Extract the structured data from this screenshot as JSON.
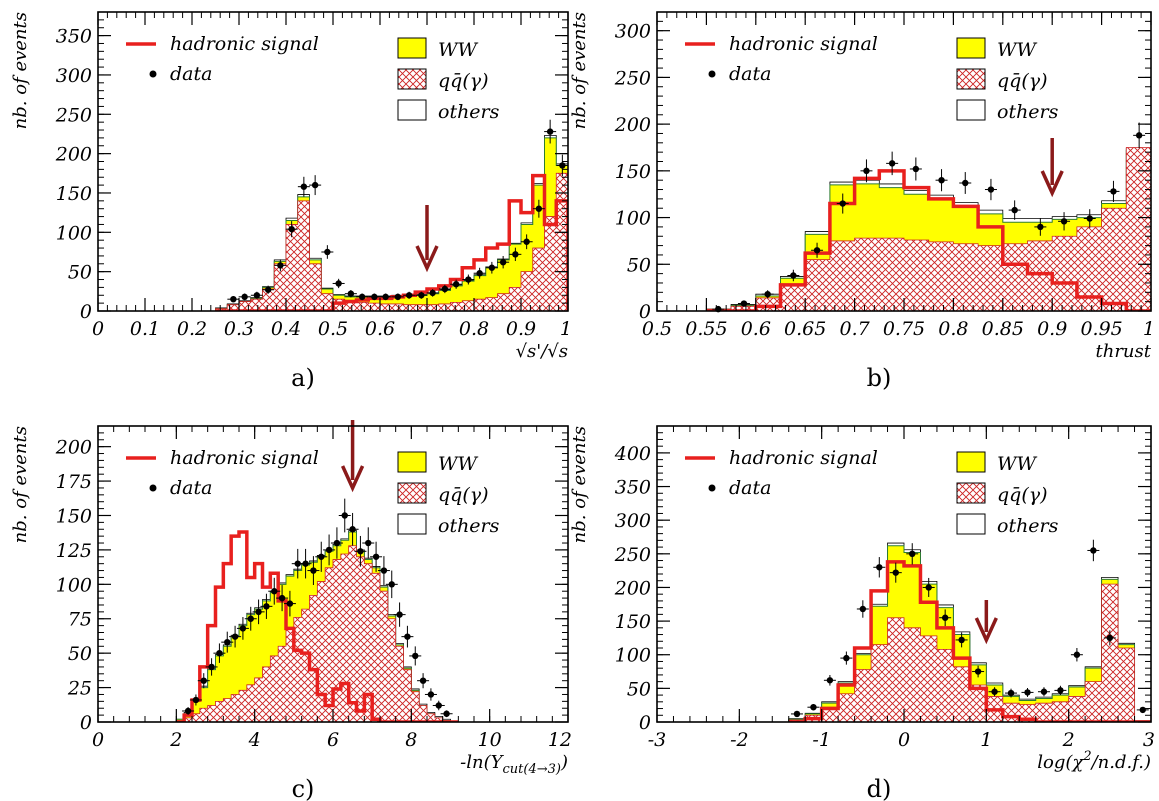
{
  "colors": {
    "ww": "#ffff00",
    "qq": "#cc2222",
    "signal": "#e8201e",
    "arrow": "#8b1a1a",
    "others_line": "#2e7d32",
    "data": "#000000"
  },
  "legend": {
    "signal": "hadronic signal",
    "data": "data",
    "ww": "WW",
    "qq": "qq̄(γ)",
    "others": "others"
  },
  "chart_data": [
    {
      "type": "histogram",
      "panel_label": "a)",
      "xlabel": "√s'/√s",
      "ylabel": "nb. of events",
      "xlim": [
        0,
        1
      ],
      "ylim": [
        0,
        380
      ],
      "xticks": [
        0,
        0.1,
        0.2,
        0.3,
        0.4,
        0.5,
        0.6,
        0.7,
        0.8,
        0.9,
        1
      ],
      "xtick_labels": [
        "0",
        "0.1",
        "0.2",
        "0.3",
        "0.4",
        "0.5",
        "0.6",
        "0.7",
        "0.8",
        "0.9",
        "1"
      ],
      "yticks": [
        0,
        50,
        100,
        150,
        200,
        250,
        300,
        350
      ],
      "ytick_labels": [
        "0",
        "50",
        "100",
        "150",
        "200",
        "250",
        "300",
        "350"
      ],
      "cut": 0.7,
      "bin_edges": [
        0.25,
        0.275,
        0.3,
        0.325,
        0.35,
        0.375,
        0.4,
        0.425,
        0.45,
        0.475,
        0.5,
        0.525,
        0.55,
        0.575,
        0.6,
        0.625,
        0.65,
        0.675,
        0.7,
        0.725,
        0.75,
        0.775,
        0.8,
        0.825,
        0.85,
        0.875,
        0.9,
        0.925,
        0.95,
        0.975,
        1.0
      ],
      "qq": [
        3,
        8,
        12,
        15,
        28,
        60,
        110,
        140,
        60,
        22,
        15,
        12,
        11,
        10,
        9,
        9,
        8,
        8,
        8,
        9,
        11,
        13,
        15,
        17,
        22,
        30,
        50,
        80,
        120,
        175
      ],
      "ww": [
        3,
        8,
        12,
        16,
        30,
        63,
        115,
        145,
        65,
        28,
        20,
        18,
        18,
        18,
        18,
        19,
        19,
        20,
        22,
        26,
        32,
        38,
        45,
        55,
        65,
        85,
        110,
        160,
        220,
        185
      ],
      "others": [
        4,
        9,
        13,
        17,
        31,
        65,
        118,
        148,
        67,
        29,
        21,
        19,
        19,
        19,
        19,
        20,
        20,
        21,
        23,
        27,
        33,
        39,
        46,
        56,
        66,
        86,
        112,
        162,
        223,
        187
      ],
      "signal": [
        0,
        0,
        0,
        0,
        0,
        0,
        0,
        0,
        0,
        0,
        10,
        12,
        14,
        16,
        16,
        18,
        20,
        24,
        28,
        32,
        40,
        55,
        65,
        80,
        85,
        140,
        125,
        172,
        110,
        140
      ],
      "data_x": [
        0.288,
        0.312,
        0.338,
        0.362,
        0.388,
        0.412,
        0.438,
        0.462,
        0.488,
        0.512,
        0.538,
        0.562,
        0.588,
        0.612,
        0.638,
        0.662,
        0.688,
        0.712,
        0.738,
        0.762,
        0.788,
        0.812,
        0.838,
        0.862,
        0.888,
        0.912,
        0.938,
        0.962,
        0.988
      ],
      "data_y": [
        15,
        18,
        20,
        27,
        58,
        104,
        158,
        160,
        75,
        35,
        22,
        18,
        18,
        18,
        18,
        20,
        20,
        23,
        28,
        34,
        40,
        48,
        55,
        62,
        72,
        88,
        130,
        228,
        185
      ]
    },
    {
      "type": "histogram",
      "panel_label": "b)",
      "xlabel": "thrust",
      "ylabel": "nb. of events",
      "xlim": [
        0.5,
        1
      ],
      "ylim": [
        0,
        320
      ],
      "xticks": [
        0.5,
        0.55,
        0.6,
        0.65,
        0.7,
        0.75,
        0.8,
        0.85,
        0.9,
        0.95,
        1
      ],
      "xtick_labels": [
        "0.5",
        "0.55",
        "0.6",
        "0.65",
        "0.7",
        "0.75",
        "0.8",
        "0.85",
        "0.9",
        "0.95",
        "1"
      ],
      "yticks": [
        0,
        50,
        100,
        150,
        200,
        250,
        300
      ],
      "ytick_labels": [
        "0",
        "50",
        "100",
        "150",
        "200",
        "250",
        "300"
      ],
      "cut": 0.9,
      "bin_edges": [
        0.55,
        0.575,
        0.6,
        0.625,
        0.65,
        0.675,
        0.7,
        0.725,
        0.75,
        0.775,
        0.8,
        0.825,
        0.85,
        0.875,
        0.9,
        0.925,
        0.95,
        0.975,
        1.0
      ],
      "qq": [
        2,
        5,
        14,
        28,
        55,
        75,
        78,
        78,
        76,
        74,
        72,
        70,
        72,
        75,
        80,
        90,
        110,
        175
      ],
      "ww": [
        2,
        6,
        16,
        35,
        82,
        135,
        136,
        132,
        125,
        120,
        112,
        104,
        95,
        95,
        98,
        100,
        115,
        172
      ],
      "others": [
        2,
        7,
        18,
        37,
        85,
        138,
        140,
        136,
        129,
        124,
        116,
        108,
        99,
        99,
        101,
        103,
        118,
        174
      ],
      "signal": [
        0,
        0,
        5,
        28,
        62,
        115,
        142,
        150,
        132,
        120,
        112,
        90,
        50,
        40,
        30,
        15,
        8,
        0
      ],
      "data_x": [
        0.562,
        0.588,
        0.612,
        0.638,
        0.662,
        0.688,
        0.712,
        0.738,
        0.762,
        0.788,
        0.812,
        0.838,
        0.862,
        0.888,
        0.912,
        0.938,
        0.962,
        0.988
      ],
      "data_y": [
        2,
        8,
        18,
        38,
        65,
        115,
        150,
        158,
        152,
        140,
        137,
        130,
        108,
        90,
        96,
        99,
        128,
        188
      ]
    },
    {
      "type": "histogram",
      "panel_label": "c)",
      "xlabel": "-ln(Y_cut(4→3))",
      "ylabel": "nb. of events",
      "xlim": [
        0,
        12
      ],
      "ylim": [
        0,
        215
      ],
      "xticks": [
        0,
        2,
        4,
        6,
        8,
        10,
        12
      ],
      "xtick_labels": [
        "0",
        "2",
        "4",
        "6",
        "8",
        "10",
        "12"
      ],
      "yticks": [
        0,
        25,
        50,
        75,
        100,
        125,
        150,
        175,
        200
      ],
      "ytick_labels": [
        "0",
        "25",
        "50",
        "75",
        "100",
        "125",
        "150",
        "175",
        "200"
      ],
      "cut": 6.5,
      "bin_edges": [
        2.0,
        2.2,
        2.4,
        2.6,
        2.8,
        3.0,
        3.2,
        3.4,
        3.6,
        3.8,
        4.0,
        4.2,
        4.4,
        4.6,
        4.8,
        5.0,
        5.2,
        5.4,
        5.6,
        5.8,
        6.0,
        6.2,
        6.4,
        6.6,
        6.8,
        7.0,
        7.2,
        7.4,
        7.6,
        7.8,
        8.0,
        8.2,
        8.4,
        8.6,
        8.8,
        9.0,
        9.2
      ],
      "qq": [
        1,
        3,
        6,
        10,
        12,
        15,
        17,
        20,
        23,
        27,
        32,
        40,
        48,
        55,
        68,
        76,
        82,
        92,
        102,
        112,
        118,
        122,
        128,
        120,
        115,
        108,
        95,
        75,
        55,
        38,
        22,
        12,
        6,
        3,
        1,
        0
      ],
      "ww": [
        2,
        6,
        15,
        25,
        38,
        48,
        55,
        62,
        70,
        78,
        82,
        88,
        94,
        100,
        106,
        110,
        114,
        116,
        120,
        124,
        128,
        132,
        138,
        124,
        118,
        112,
        98,
        77,
        56,
        39,
        23,
        12,
        6,
        3,
        1,
        0
      ],
      "others": [
        2,
        7,
        16,
        26,
        39,
        49,
        56,
        63,
        71,
        79,
        83,
        89,
        95,
        101,
        107,
        111,
        115,
        117,
        121,
        125,
        129,
        133,
        139,
        125,
        119,
        113,
        99,
        78,
        57,
        40,
        24,
        13,
        7,
        4,
        2,
        0
      ],
      "signal": [
        0,
        5,
        16,
        40,
        70,
        98,
        115,
        135,
        138,
        105,
        115,
        98,
        108,
        88,
        68,
        52,
        50,
        38,
        20,
        12,
        24,
        28,
        14,
        8,
        20,
        2,
        0,
        0,
        0,
        0,
        0,
        0,
        0,
        0,
        0,
        0
      ],
      "data_x": [
        2.3,
        2.5,
        2.7,
        2.9,
        3.1,
        3.3,
        3.5,
        3.7,
        3.9,
        4.1,
        4.3,
        4.5,
        4.7,
        4.9,
        5.1,
        5.3,
        5.5,
        5.7,
        5.9,
        6.1,
        6.3,
        6.5,
        6.7,
        6.9,
        7.1,
        7.3,
        7.5,
        7.7,
        7.9,
        8.1,
        8.3,
        8.5,
        8.7,
        8.9
      ],
      "data_y": [
        8,
        16,
        30,
        40,
        50,
        58,
        62,
        68,
        75,
        80,
        84,
        95,
        90,
        86,
        115,
        115,
        110,
        120,
        125,
        130,
        150,
        140,
        124,
        130,
        120,
        110,
        100,
        78,
        62,
        48,
        30,
        20,
        12,
        6
      ]
    },
    {
      "type": "histogram",
      "panel_label": "d)",
      "xlabel": "log(χ²/n.d.f.)",
      "ylabel": "nb. of events",
      "xlim": [
        -3,
        3
      ],
      "ylim": [
        0,
        440
      ],
      "xticks": [
        -3,
        -2,
        -1,
        0,
        1,
        2,
        3
      ],
      "xtick_labels": [
        "-3",
        "-2",
        "-1",
        "0",
        "1",
        "2",
        "3"
      ],
      "yticks": [
        0,
        50,
        100,
        150,
        200,
        250,
        300,
        350,
        400
      ],
      "ytick_labels": [
        "0",
        "50",
        "100",
        "150",
        "200",
        "250",
        "300",
        "350",
        "400"
      ],
      "cut": 1.0,
      "bin_edges": [
        -1.4,
        -1.2,
        -1.0,
        -0.8,
        -0.6,
        -0.4,
        -0.2,
        0.0,
        0.2,
        0.4,
        0.6,
        0.8,
        1.0,
        1.2,
        1.4,
        1.6,
        1.8,
        2.0,
        2.2,
        2.4,
        2.6,
        2.8,
        3.0
      ],
      "qq": [
        3,
        10,
        22,
        42,
        78,
        115,
        155,
        140,
        128,
        108,
        82,
        55,
        38,
        28,
        26,
        28,
        30,
        38,
        60,
        205,
        110,
        0
      ],
      "ww": [
        4,
        12,
        28,
        58,
        100,
        172,
        262,
        252,
        205,
        170,
        130,
        85,
        55,
        38,
        32,
        35,
        40,
        52,
        80,
        212,
        115,
        0
      ],
      "others": [
        5,
        13,
        30,
        60,
        102,
        175,
        266,
        256,
        209,
        174,
        134,
        88,
        58,
        40,
        34,
        37,
        42,
        54,
        82,
        215,
        117,
        2
      ],
      "signal": [
        0,
        5,
        20,
        55,
        110,
        195,
        238,
        232,
        178,
        140,
        95,
        50,
        18,
        8,
        4,
        0,
        0,
        0,
        0,
        0,
        0,
        0
      ],
      "data_x": [
        -1.3,
        -1.1,
        -0.9,
        -0.7,
        -0.5,
        -0.3,
        -0.1,
        0.1,
        0.3,
        0.5,
        0.7,
        0.9,
        1.1,
        1.3,
        1.5,
        1.7,
        1.9,
        2.1,
        2.3,
        2.5,
        2.9
      ],
      "data_y": [
        12,
        22,
        62,
        95,
        168,
        230,
        222,
        250,
        200,
        155,
        122,
        75,
        45,
        43,
        44,
        45,
        47,
        100,
        255,
        125,
        18
      ]
    }
  ]
}
